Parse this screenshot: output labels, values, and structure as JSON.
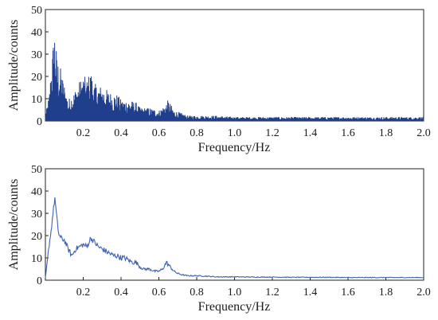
{
  "chart_data": [
    {
      "type": "line",
      "title": "",
      "xlabel": "Frequency/Hz",
      "ylabel": "Amplitude/counts",
      "xlim": [
        0,
        2.0
      ],
      "ylim": [
        0,
        50
      ],
      "xticks": [
        "0.2",
        "0.4",
        "0.6",
        "0.8",
        "1.0",
        "1.2",
        "1.4",
        "1.6",
        "1.8",
        "2.0"
      ],
      "yticks": [
        "0",
        "10",
        "20",
        "30",
        "40",
        "50"
      ],
      "grid": false,
      "legend": "none",
      "style": "dense-filled-spectrum",
      "color": "#1f3e8c",
      "x": [
        0.0,
        0.02,
        0.035,
        0.05,
        0.06,
        0.08,
        0.1,
        0.12,
        0.15,
        0.18,
        0.2,
        0.22,
        0.24,
        0.26,
        0.3,
        0.34,
        0.38,
        0.4,
        0.44,
        0.48,
        0.5,
        0.55,
        0.6,
        0.63,
        0.65,
        0.68,
        0.72,
        0.75,
        0.8,
        0.9,
        1.0,
        1.2,
        1.4,
        1.6,
        1.8,
        2.0
      ],
      "y": [
        2,
        10,
        25,
        37,
        25,
        20,
        14,
        8,
        11,
        15,
        17,
        16,
        19,
        14,
        13,
        11,
        10,
        8,
        8,
        7,
        5,
        5,
        4,
        6,
        8,
        4,
        3,
        2,
        2,
        2,
        1.5,
        1.5,
        1.5,
        1.5,
        1.5,
        1.5
      ]
    },
    {
      "type": "line",
      "title": "",
      "xlabel": "Frequency/Hz",
      "ylabel": "Amplitude/counts",
      "xlim": [
        0,
        2.0
      ],
      "ylim": [
        0,
        50
      ],
      "xticks": [
        "0.2",
        "0.4",
        "0.6",
        "0.8",
        "1.0",
        "1.2",
        "1.4",
        "1.6",
        "1.8",
        "2.0"
      ],
      "yticks": [
        "0",
        "10",
        "20",
        "30",
        "40",
        "50"
      ],
      "grid": false,
      "legend": "none",
      "style": "smoothed-line",
      "color": "#3f63b0",
      "x": [
        0.0,
        0.01,
        0.02,
        0.03,
        0.04,
        0.05,
        0.06,
        0.07,
        0.08,
        0.1,
        0.12,
        0.14,
        0.16,
        0.18,
        0.2,
        0.22,
        0.24,
        0.26,
        0.28,
        0.3,
        0.32,
        0.34,
        0.36,
        0.38,
        0.4,
        0.42,
        0.44,
        0.46,
        0.48,
        0.5,
        0.52,
        0.55,
        0.58,
        0.6,
        0.62,
        0.64,
        0.66,
        0.68,
        0.7,
        0.72,
        0.75,
        0.8,
        0.85,
        0.9,
        1.0,
        1.1,
        1.2,
        1.3,
        1.4,
        1.5,
        1.6,
        1.7,
        1.8,
        1.9,
        2.0
      ],
      "y": [
        1,
        8,
        16,
        22,
        30,
        37,
        28,
        21,
        19,
        18,
        14,
        11,
        14,
        15,
        16,
        15,
        19,
        17,
        15,
        14,
        13,
        12,
        11,
        11,
        10,
        10,
        9,
        8,
        8,
        6,
        5,
        5,
        4,
        4,
        5,
        8,
        6,
        4,
        3,
        2.5,
        2,
        2,
        1.8,
        1.5,
        1.5,
        1.4,
        1.4,
        1.3,
        1.3,
        1.3,
        1.2,
        1.2,
        1.2,
        1.2,
        1.2
      ]
    }
  ]
}
